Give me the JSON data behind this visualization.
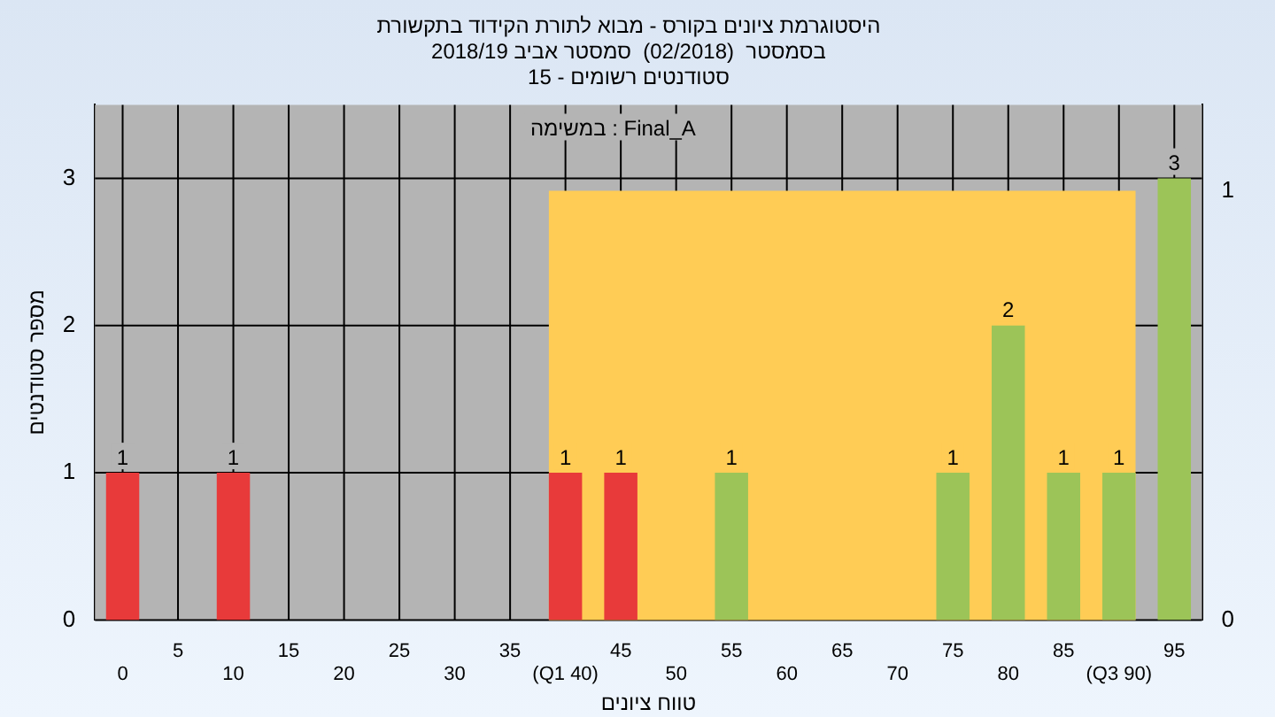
{
  "chart_data": {
    "type": "bar",
    "title": "היסטוגרמת ציונים בקורס - מבוא לתורת הקידוד בתקשורת",
    "subtitle": "בסמסטר  (02/2018)  סמסטר אביב 2018/19\nסטודנטים רשומים - 15",
    "xlabel": "טווח ציונים",
    "ylabel": "מספר סטודנטים",
    "annotations": [
      "במשימה : Final_A"
    ],
    "categories": [
      "0",
      "5",
      "10",
      "15",
      "20",
      "25",
      "30",
      "35",
      "(Q1 40)",
      "45",
      "50",
      "55",
      "60",
      "65",
      "70",
      "75",
      "80",
      "85",
      "(Q3 90)",
      "95"
    ],
    "values": [
      1,
      0,
      1,
      0,
      0,
      0,
      0,
      0,
      1,
      1,
      0,
      1,
      0,
      0,
      0,
      1,
      2,
      1,
      1,
      3
    ],
    "colors": [
      "#e83a3a",
      "#e83a3a",
      "#e83a3a",
      "#e83a3a",
      "#e83a3a",
      "#e83a3a",
      "#e83a3a",
      "#e83a3a",
      "#e83a3a",
      "#e83a3a",
      "#9cc458",
      "#9cc458",
      "#9cc458",
      "#9cc458",
      "#9cc458",
      "#9cc458",
      "#9cc458",
      "#9cc458",
      "#9cc458",
      "#9cc458"
    ],
    "ylim": [
      0,
      3.5
    ],
    "yticks": [
      0,
      1,
      2,
      3
    ],
    "y2lim": [
      0,
      1.2
    ],
    "y2ticks": [
      0,
      1
    ],
    "bands": [
      {
        "axis": "x",
        "from": "(Q1 40)",
        "to": "(Q3 90)",
        "color": "#ffcc55"
      }
    ],
    "value_labels": [
      "1",
      null,
      "1",
      null,
      null,
      null,
      null,
      null,
      "1",
      "1",
      null,
      "1",
      null,
      null,
      null,
      "1",
      "2",
      "1",
      "1",
      "3"
    ],
    "grid": true,
    "legend": false
  }
}
